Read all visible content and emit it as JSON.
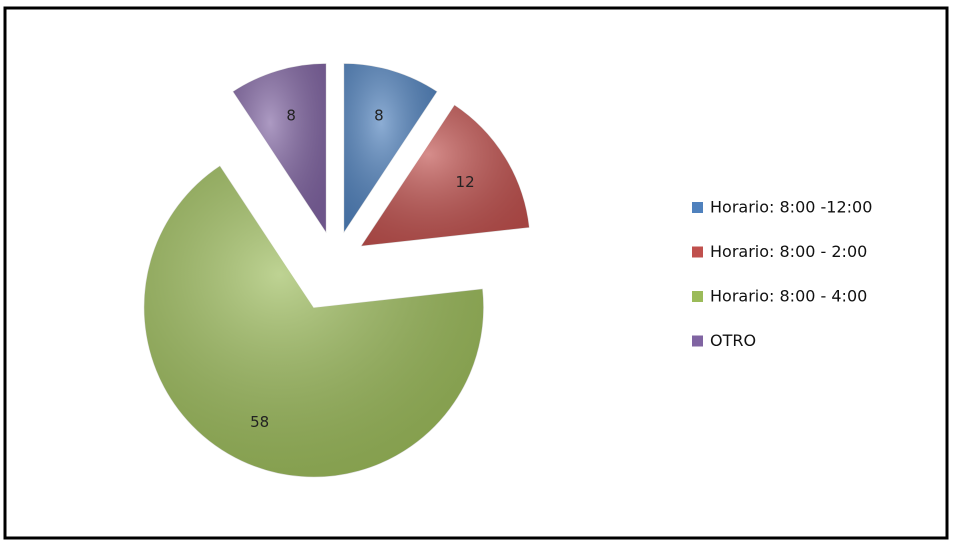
{
  "chart_data": {
    "type": "pie",
    "categories": [
      "Horario: 8:00 -12:00",
      "Horario: 8:00 - 2:00",
      "Horario: 8:00 - 4:00",
      "OTRO"
    ],
    "values": [
      8,
      12,
      58,
      8
    ],
    "colors": [
      "#4f81bd",
      "#c0504d",
      "#9bbb59",
      "#8064a2"
    ],
    "legend": "right"
  }
}
